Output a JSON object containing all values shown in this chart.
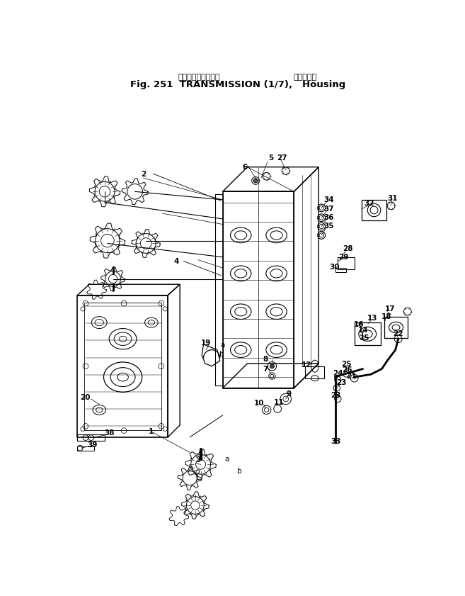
{
  "title_jp1": "トランスミッション",
  "title_jp2": "ハウジング",
  "title_en1": "Fig. 251",
  "title_en2": "TRANSMISSION (1/7),",
  "title_en3": "Housing",
  "bg_color": "#ffffff",
  "lc": "#000000",
  "fig_width": 6.57,
  "fig_height": 8.41,
  "dpi": 100
}
